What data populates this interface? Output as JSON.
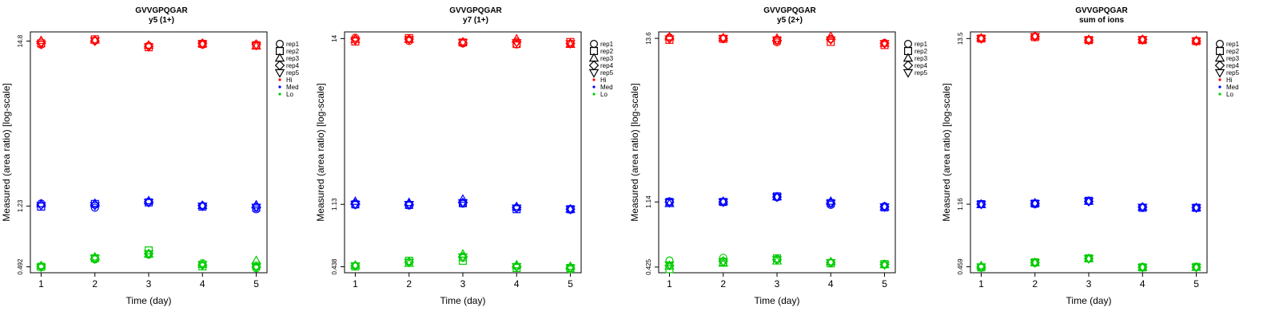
{
  "chart_data": [
    {
      "type": "scatter",
      "title": "GVVGPQGAR",
      "subtitle": "y5 (1+)",
      "xlabel": "Time (day)",
      "ylabel": "Measured (area ratio) [log-scale]",
      "x_ticks": [
        "1",
        "2",
        "3",
        "4",
        "5"
      ],
      "y_ticks": [
        "0.492",
        "1.23",
        "14.8"
      ],
      "y_log": true,
      "ylim": [
        0.45,
        17.0
      ],
      "xlim": [
        0.8,
        5.2
      ],
      "grid": false,
      "legend_position": "right",
      "legend": [
        "rep1",
        "rep2",
        "rep3",
        "rep4",
        "rep5",
        "Hi",
        "Med",
        "Lo"
      ],
      "reps": [
        "rep1",
        "rep2",
        "rep3",
        "rep4",
        "rep5"
      ],
      "levels": [
        {
          "name": "Hi",
          "color": "#ff0000",
          "values": [
            [
              14.0,
              14.3,
              14.9,
              14.6,
              14.1
            ],
            [
              14.9,
              15.2,
              15.0,
              14.8,
              14.9
            ],
            [
              13.8,
              13.5,
              13.9,
              13.7,
              13.6
            ],
            [
              14.0,
              14.2,
              14.2,
              14.3,
              14.2
            ],
            [
              13.8,
              13.9,
              13.7,
              14.1,
              13.9
            ]
          ]
        },
        {
          "name": "Med",
          "color": "#0000ff",
          "values": [
            [
              1.28,
              1.22,
              1.27,
              1.25,
              1.24
            ],
            [
              1.2,
              1.27,
              1.28,
              1.25,
              1.24
            ],
            [
              1.31,
              1.3,
              1.33,
              1.31,
              1.3
            ],
            [
              1.23,
              1.22,
              1.24,
              1.24,
              1.23
            ],
            [
              1.17,
              1.2,
              1.25,
              1.21,
              1.21
            ]
          ]
        },
        {
          "name": "Lo",
          "color": "#00cc00",
          "values": [
            [
              0.497,
              0.492,
              0.5,
              0.495,
              0.49
            ],
            [
              0.55,
              0.56,
              0.57,
              0.555,
              0.56
            ],
            [
              0.59,
              0.63,
              0.595,
              0.6,
              0.6
            ],
            [
              0.52,
              0.495,
              0.51,
              0.505,
              0.51
            ],
            [
              0.48,
              0.5,
              0.54,
              0.49,
              0.49
            ]
          ]
        }
      ]
    },
    {
      "type": "scatter",
      "title": "GVVGPQGAR",
      "subtitle": "y7 (1+)",
      "xlabel": "Time (day)",
      "ylabel": "Measured (area ratio) [log-scale]",
      "x_ticks": [
        "1",
        "2",
        "3",
        "4",
        "5"
      ],
      "y_ticks": [
        "0.438",
        "1.13",
        "14"
      ],
      "y_log": true,
      "ylim": [
        0.4,
        15.5
      ],
      "xlim": [
        0.8,
        5.2
      ],
      "grid": false,
      "legend_position": "right",
      "legend": [
        "rep1",
        "rep2",
        "rep3",
        "rep4",
        "rep5",
        "Hi",
        "Med",
        "Lo"
      ],
      "reps": [
        "rep1",
        "rep2",
        "rep3",
        "rep4",
        "rep5"
      ],
      "levels": [
        {
          "name": "Hi",
          "color": "#ff0000",
          "values": [
            [
              14.2,
              13.4,
              13.8,
              13.9,
              13.6
            ],
            [
              13.5,
              14.1,
              13.8,
              13.9,
              13.8
            ],
            [
              13.0,
              13.2,
              13.3,
              13.1,
              13.2
            ],
            [
              12.8,
              12.9,
              13.9,
              13.3,
              13.2
            ],
            [
              12.9,
              13.3,
              12.8,
              13.0,
              13.0
            ]
          ]
        },
        {
          "name": "Med",
          "color": "#0000ff",
          "values": [
            [
              1.12,
              1.13,
              1.18,
              1.14,
              1.13
            ],
            [
              1.11,
              1.12,
              1.16,
              1.13,
              1.13
            ],
            [
              1.14,
              1.15,
              1.22,
              1.16,
              1.16
            ],
            [
              1.07,
              1.05,
              1.09,
              1.08,
              1.07
            ],
            [
              1.04,
              1.05,
              1.05,
              1.05,
              1.05
            ]
          ]
        },
        {
          "name": "Lo",
          "color": "#00cc00",
          "values": [
            [
              0.445,
              0.44,
              0.448,
              0.445,
              0.445
            ],
            [
              0.47,
              0.48,
              0.46,
              0.47,
              0.47
            ],
            [
              0.5,
              0.48,
              0.53,
              0.51,
              0.51
            ],
            [
              0.44,
              0.43,
              0.45,
              0.44,
              0.44
            ],
            [
              0.42,
              0.43,
              0.44,
              0.43,
              0.43
            ]
          ]
        }
      ]
    },
    {
      "type": "scatter",
      "title": "GVVGPQGAR",
      "subtitle": "y5 (2+)",
      "xlabel": "Time (day)",
      "ylabel": "Measured (area ratio) [log-scale]",
      "x_ticks": [
        "1",
        "2",
        "3",
        "4",
        "5"
      ],
      "y_ticks": [
        "0.425",
        "1.14",
        "13.6"
      ],
      "y_log": true,
      "ylim": [
        0.39,
        15.0
      ],
      "xlim": [
        0.8,
        5.2
      ],
      "grid": false,
      "legend_position": "right",
      "legend": [
        "rep1",
        "rep2",
        "rep3",
        "rep4",
        "rep5"
      ],
      "reps": [
        "rep1",
        "rep2",
        "rep3",
        "rep4",
        "rep5"
      ],
      "levels": [
        {
          "name": "Hi",
          "color": "#ff0000",
          "values": [
            [
              13.8,
              13.3,
              13.9,
              13.6,
              13.5
            ],
            [
              13.6,
              13.5,
              13.7,
              13.6,
              13.6
            ],
            [
              12.8,
              13.2,
              13.6,
              13.2,
              13.2
            ],
            [
              13.5,
              12.9,
              14.0,
              13.4,
              13.3
            ],
            [
              12.7,
              12.3,
              12.6,
              12.6,
              12.6
            ]
          ]
        },
        {
          "name": "Med",
          "color": "#0000ff",
          "values": [
            [
              1.15,
              1.14,
              1.11,
              1.14,
              1.13
            ],
            [
              1.14,
              1.14,
              1.15,
              1.14,
              1.14
            ],
            [
              1.22,
              1.24,
              1.23,
              1.23,
              1.23
            ],
            [
              1.09,
              1.12,
              1.15,
              1.12,
              1.12
            ],
            [
              1.07,
              1.05,
              1.06,
              1.06,
              1.06
            ]
          ]
        },
        {
          "name": "Lo",
          "color": "#00cc00",
          "values": [
            [
              0.47,
              0.412,
              0.43,
              0.435,
              0.44
            ],
            [
              0.49,
              0.46,
              0.45,
              0.465,
              0.46
            ],
            [
              0.48,
              0.485,
              0.465,
              0.475,
              0.475
            ],
            [
              0.455,
              0.45,
              0.46,
              0.455,
              0.455
            ],
            [
              0.44,
              0.445,
              0.44,
              0.442,
              0.44
            ]
          ]
        }
      ]
    },
    {
      "type": "scatter",
      "title": "GVVGPQGAR",
      "subtitle": "sum of ions",
      "xlabel": "Time (day)",
      "ylabel": "Measured (area ratio) [log-scale]",
      "x_ticks": [
        "1",
        "2",
        "3",
        "4",
        "5"
      ],
      "y_ticks": [
        "0.459",
        "1.16",
        "13.5"
      ],
      "y_log": true,
      "ylim": [
        0.42,
        14.9
      ],
      "xlim": [
        0.8,
        5.2
      ],
      "grid": false,
      "legend_position": "right",
      "legend": [
        "rep1",
        "rep2",
        "rep3",
        "rep4",
        "rep5",
        "Hi",
        "Med",
        "Lo"
      ],
      "reps": [
        "rep1",
        "rep2",
        "rep3",
        "rep4",
        "rep5"
      ],
      "levels": [
        {
          "name": "Hi",
          "color": "#ff0000",
          "values": [
            [
              13.5,
              13.5,
              13.6,
              13.5,
              13.5
            ],
            [
              13.9,
              13.8,
              14.0,
              13.9,
              13.9
            ],
            [
              13.2,
              13.2,
              13.3,
              13.2,
              13.2
            ],
            [
              13.3,
              13.2,
              13.3,
              13.3,
              13.3
            ],
            [
              13.0,
              13.0,
              13.1,
              13.0,
              13.0
            ]
          ]
        },
        {
          "name": "Med",
          "color": "#0000ff",
          "values": [
            [
              1.16,
              1.16,
              1.15,
              1.16,
              1.16
            ],
            [
              1.16,
              1.17,
              1.18,
              1.17,
              1.17
            ],
            [
              1.21,
              1.22,
              1.21,
              1.21,
              1.21
            ],
            [
              1.11,
              1.1,
              1.11,
              1.11,
              1.11
            ],
            [
              1.1,
              1.1,
              1.1,
              1.1,
              1.1
            ]
          ]
        },
        {
          "name": "Lo",
          "color": "#00cc00",
          "values": [
            [
              0.452,
              0.455,
              0.465,
              0.458,
              0.458
            ],
            [
              0.485,
              0.49,
              0.488,
              0.488,
              0.488
            ],
            [
              0.518,
              0.52,
              0.516,
              0.518,
              0.518
            ],
            [
              0.458,
              0.455,
              0.455,
              0.456,
              0.456
            ],
            [
              0.456,
              0.458,
              0.455,
              0.456,
              0.456
            ]
          ]
        }
      ]
    }
  ]
}
